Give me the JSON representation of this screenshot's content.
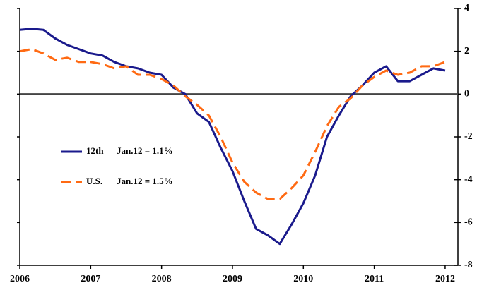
{
  "chart_data": {
    "type": "line",
    "x": [
      2006,
      2006.167,
      2006.333,
      2006.5,
      2006.667,
      2006.833,
      2007,
      2007.167,
      2007.333,
      2007.5,
      2007.667,
      2007.833,
      2008,
      2008.167,
      2008.333,
      2008.5,
      2008.667,
      2008.833,
      2009,
      2009.167,
      2009.333,
      2009.5,
      2009.667,
      2009.833,
      2010,
      2010.167,
      2010.333,
      2010.5,
      2010.667,
      2010.833,
      2011,
      2011.167,
      2011.333,
      2011.5,
      2011.667,
      2011.833,
      2012
    ],
    "series": [
      {
        "name": "12th",
        "note": "Jan.12 = 1.1%",
        "color": "#1a1a8c",
        "dashed": false,
        "values": [
          3.0,
          3.05,
          3.0,
          2.6,
          2.3,
          2.1,
          1.9,
          1.8,
          1.5,
          1.3,
          1.2,
          1.0,
          0.9,
          0.3,
          0.0,
          -0.9,
          -1.3,
          -2.5,
          -3.6,
          -5.0,
          -6.3,
          -6.6,
          -7.0,
          -6.1,
          -5.1,
          -3.8,
          -2.0,
          -1.0,
          -0.1,
          0.4,
          1.0,
          1.3,
          0.6,
          0.6,
          0.9,
          1.2,
          1.1
        ]
      },
      {
        "name": "U.S.",
        "note": "Jan.12 = 1.5%",
        "color": "#ff6a13",
        "dashed": true,
        "values": [
          2.0,
          2.1,
          1.9,
          1.6,
          1.7,
          1.5,
          1.5,
          1.4,
          1.2,
          1.3,
          0.9,
          0.9,
          0.7,
          0.4,
          -0.1,
          -0.5,
          -1.0,
          -2.0,
          -3.2,
          -4.1,
          -4.6,
          -4.9,
          -4.9,
          -4.4,
          -3.8,
          -2.7,
          -1.5,
          -0.6,
          -0.2,
          0.4,
          0.8,
          1.1,
          0.9,
          1.0,
          1.3,
          1.3,
          1.5
        ]
      }
    ],
    "xlim": [
      2006,
      2012.18
    ],
    "xticks": [
      2006,
      2007,
      2008,
      2009,
      2010,
      2011,
      2012
    ],
    "ylim": [
      -8,
      4
    ],
    "yticks": [
      4,
      2,
      0,
      -2,
      -4,
      -6,
      -8
    ],
    "zero_line": true
  }
}
